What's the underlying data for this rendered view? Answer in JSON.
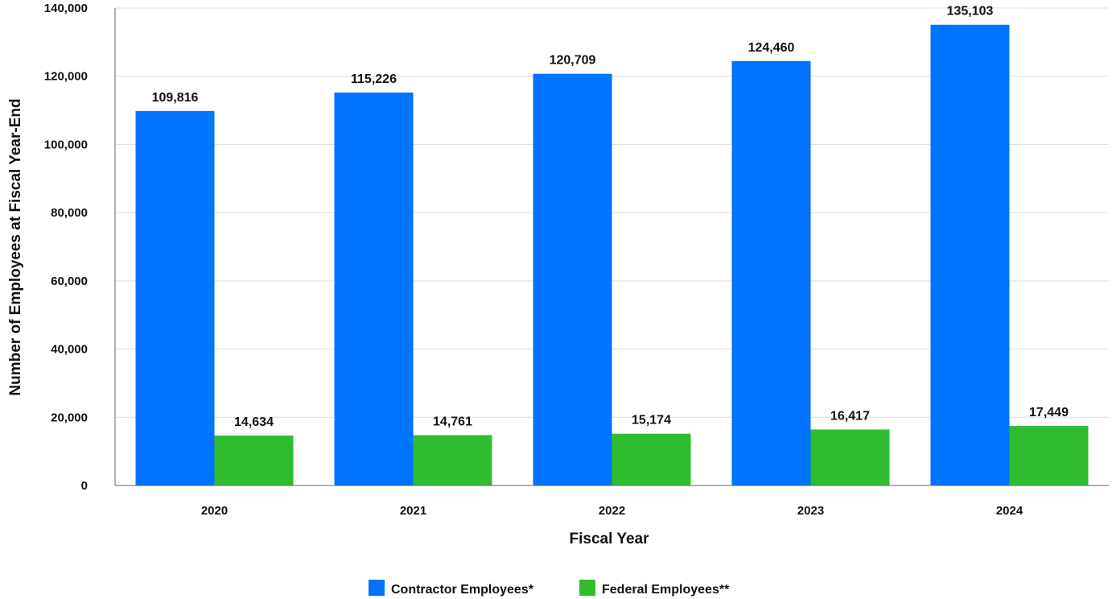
{
  "chart_data": {
    "type": "bar",
    "title": "",
    "xlabel": "Fiscal Year",
    "ylabel": "Number of Employees at Fiscal Year-End",
    "categories": [
      "2020",
      "2021",
      "2022",
      "2023",
      "2024"
    ],
    "series": [
      {
        "name": "Contractor Employees*",
        "color": "#0073ff",
        "values": [
          109816,
          115226,
          120709,
          124460,
          135103
        ],
        "labels": [
          "109,816",
          "115,226",
          "120,709",
          "124,460",
          "135,103"
        ]
      },
      {
        "name": "Federal Employees**",
        "color": "#2fbd2f",
        "values": [
          14634,
          14761,
          15174,
          16417,
          17449
        ],
        "labels": [
          "14,634",
          "14,761",
          "15,174",
          "16,417",
          "17,449"
        ]
      }
    ],
    "ylim": [
      0,
      140000
    ],
    "yticks": [
      0,
      20000,
      40000,
      60000,
      80000,
      100000,
      120000,
      140000
    ],
    "ytick_labels": [
      "0",
      "20,000",
      "40,000",
      "60,000",
      "80,000",
      "100,000",
      "120,000",
      "140,000"
    ],
    "grid": true,
    "legend_position": "bottom-center"
  }
}
